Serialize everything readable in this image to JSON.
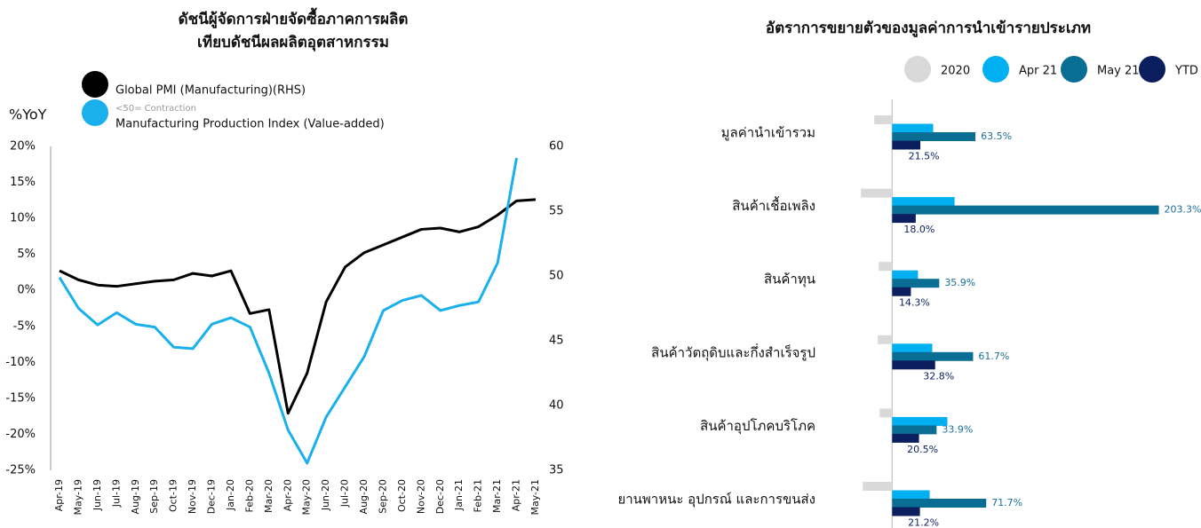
{
  "chart_data": [
    {
      "type": "line",
      "title": [
        "ดัชนีผู้จัดการฝ่ายจัดซื้อภาคการผลิต",
        "เทียบดัชนีผลผลิตอุตสาหกรรม"
      ],
      "y_label": "%YoY",
      "annotation": "<50= Contraction",
      "categories": [
        "Apr-19",
        "May-19",
        "Jun-19",
        "Jul-19",
        "Aug-19",
        "Sep-19",
        "Oct-19",
        "Nov-19",
        "Dec-19",
        "Jan-20",
        "Feb-20",
        "Mar-20",
        "Apr-20",
        "May-20",
        "Jun-20",
        "Jul-20",
        "Aug-20",
        "Sep-20",
        "Oct-20",
        "Nov-20",
        "Dec-20",
        "Jan-21",
        "Feb-21",
        "Mar-21",
        "Apr-21",
        "May-21"
      ],
      "series": [
        {
          "name": "Global PMI (Manufacturing)(RHS)",
          "color": "#000000",
          "axis": "y2",
          "values": [
            50.4,
            49.7,
            49.3,
            49.2,
            49.4,
            49.6,
            49.7,
            50.2,
            50.0,
            50.4,
            47.1,
            47.4,
            39.4,
            42.5,
            48.0,
            50.7,
            51.8,
            52.4,
            53.0,
            53.6,
            53.7,
            53.4,
            53.8,
            54.7,
            55.8,
            55.9
          ]
        },
        {
          "name": "Manufacturing Production Index (Value-added)",
          "color": "#1ab0ec",
          "values": [
            1.8,
            -2.5,
            -4.8,
            -3.1,
            -4.7,
            -5.1,
            -7.9,
            -8.1,
            -4.7,
            -3.8,
            -5.1,
            -11.5,
            -19.4,
            -24.0,
            -17.6,
            -13.4,
            -9.2,
            -2.8,
            -1.4,
            -0.7,
            -2.8,
            -2.1,
            -1.6,
            3.8,
            18.4,
            null
          ]
        }
      ],
      "ylim": [
        -25,
        20
      ],
      "yticks": [
        {
          "value": 20,
          "label": "20%"
        },
        {
          "value": 15,
          "label": "15%"
        },
        {
          "value": 10,
          "label": "10%"
        },
        {
          "value": 5,
          "label": "5%"
        },
        {
          "value": 0,
          "label": "0%"
        },
        {
          "value": -5,
          "label": "-5%"
        },
        {
          "value": -10,
          "label": "-10%"
        },
        {
          "value": -15,
          "label": "-15%"
        },
        {
          "value": -20,
          "label": "-20%"
        },
        {
          "value": -25,
          "label": "-25%"
        }
      ],
      "y2lim": [
        35,
        60
      ],
      "y2ticks": [
        60,
        55,
        50,
        45,
        40,
        35
      ]
    },
    {
      "type": "bar",
      "orientation": "horizontal",
      "title": "อัตราการขยายตัวของมูลค่าการนำเข้ารายประเภท",
      "categories": [
        "มูลค่านำเข้ารวม",
        "สินค้าเชื้อเพลิง",
        "สินค้าทุน",
        "สินค้าวัตถุดิบและกึ่งสำเร็จรูป",
        "สินค้าอุปโภคบริโภค",
        "ยานพาหนะ อุปกรณ์ และการขนส่ง"
      ],
      "series": [
        {
          "name": "2020",
          "color": "#d9d9d9",
          "values": [
            -13.6,
            -23.8,
            -10.2,
            -10.9,
            -9.5,
            -22.4
          ]
        },
        {
          "name": "Apr 21",
          "color": "#00b0f0",
          "values": [
            31.3,
            47.6,
            19.7,
            30.6,
            42.1,
            28.6
          ]
        },
        {
          "name": "May 21",
          "color": "#0a6d94",
          "values": [
            63.5,
            203.3,
            35.9,
            61.7,
            33.9,
            71.7
          ],
          "value_labels": [
            "63.5%",
            "203.3%",
            "35.9%",
            "61.7%",
            "33.9%",
            "71.7%"
          ]
        },
        {
          "name": "YTD",
          "color": "#0b1f5e",
          "values": [
            21.5,
            18.0,
            14.3,
            32.8,
            20.5,
            21.2
          ],
          "value_labels": [
            "21.5%",
            "18.0%",
            "14.3%",
            "32.8%",
            "20.5%",
            "21.2%"
          ]
        }
      ],
      "xlim": [
        -30,
        207
      ]
    }
  ]
}
